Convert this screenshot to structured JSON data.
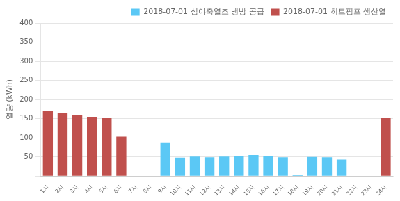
{
  "chart_data": {
    "type": "bar",
    "categories": [
      "1시",
      "2시",
      "3시",
      "4시",
      "5시",
      "6시",
      "7시",
      "8시",
      "9시",
      "10시",
      "11시",
      "12시",
      "13시",
      "14시",
      "15시",
      "16시",
      "17시",
      "18시",
      "19시",
      "20시",
      "21시",
      "22시",
      "23시",
      "24시"
    ],
    "series": [
      {
        "name": "2018-07-01 심야축열조 냉방 공급",
        "color": "#5BC8F5",
        "values": [
          0,
          0,
          0,
          0,
          0,
          0,
          0,
          0,
          88,
          48,
          51,
          49,
          51,
          53,
          55,
          52,
          49,
          2,
          50,
          49,
          43,
          0,
          0,
          0
        ]
      },
      {
        "name": "2018-07-01 히트펌프 생산열",
        "color": "#C0504D",
        "values": [
          170,
          164,
          159,
          155,
          151,
          103,
          0,
          0,
          0,
          0,
          0,
          0,
          0,
          0,
          0,
          0,
          0,
          0,
          0,
          0,
          0,
          0,
          0,
          151
        ]
      }
    ],
    "ylabel": "열량 (kWh)",
    "ylim": [
      0,
      400
    ],
    "yticks": [
      {
        "value": 0,
        "label": ""
      },
      50,
      100,
      150,
      200,
      250,
      300,
      350,
      400
    ],
    "grid": true,
    "legend": "upper right"
  }
}
